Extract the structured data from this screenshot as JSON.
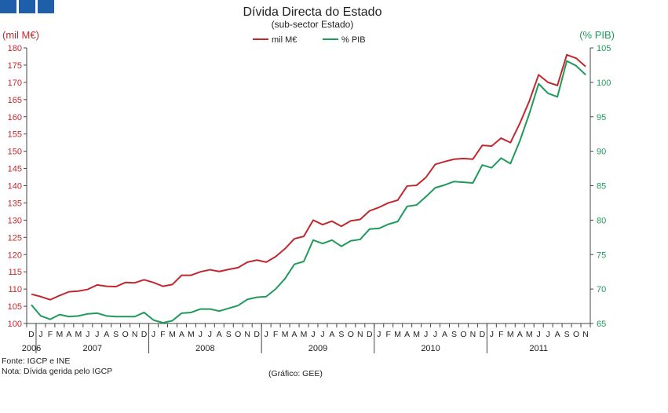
{
  "header": {
    "logo_color": "#1f5ea8"
  },
  "chart_data": {
    "type": "line",
    "title": "Dívida Directa do Estado",
    "subtitle": "(sub-sector  Estado)",
    "ylabel_left": "(mil M€)",
    "ylabel_right": "(% PIB)",
    "ylim_left": [
      100,
      180
    ],
    "ylim_right": [
      65,
      105
    ],
    "yticks_left": [
      100,
      105,
      110,
      115,
      120,
      125,
      130,
      135,
      140,
      145,
      150,
      155,
      160,
      165,
      170,
      175,
      180
    ],
    "yticks_right": [
      65,
      70,
      75,
      80,
      85,
      90,
      95,
      100,
      105
    ],
    "months": [
      "D",
      "J",
      "F",
      "M",
      "A",
      "M",
      "J",
      "J",
      "A",
      "S",
      "O",
      "N",
      "D",
      "J",
      "F",
      "M",
      "A",
      "M",
      "J",
      "J",
      "A",
      "S",
      "O",
      "N",
      "D",
      "J",
      "F",
      "M",
      "A",
      "M",
      "J",
      "J",
      "A",
      "S",
      "O",
      "N",
      "D",
      "J",
      "F",
      "M",
      "A",
      "M",
      "J",
      "J",
      "A",
      "S",
      "O",
      "N",
      "D",
      "J",
      "F",
      "M",
      "A",
      "M",
      "J",
      "J",
      "A",
      "S",
      "O",
      "N"
    ],
    "years": [
      {
        "label": "2006",
        "start": 0,
        "end": 0
      },
      {
        "label": "2007",
        "start": 1,
        "end": 12
      },
      {
        "label": "2008",
        "start": 13,
        "end": 24
      },
      {
        "label": "2009",
        "start": 25,
        "end": 36
      },
      {
        "label": "2010",
        "start": 37,
        "end": 48
      },
      {
        "label": "2011",
        "start": 49,
        "end": 59
      }
    ],
    "legend_position": "top-center",
    "grid": false,
    "series": [
      {
        "name": "mil M€",
        "axis": "left",
        "color": "#c0282d",
        "values": [
          108.5,
          107.8,
          106.9,
          108.1,
          109.2,
          109.4,
          109.9,
          111.2,
          110.8,
          110.7,
          111.9,
          111.8,
          112.7,
          111.9,
          110.8,
          111.3,
          114.0,
          114.0,
          115.0,
          115.6,
          115.1,
          115.7,
          116.2,
          117.8,
          118.4,
          117.8,
          119.4,
          121.7,
          124.6,
          125.3,
          130.0,
          128.7,
          129.7,
          128.2,
          129.8,
          130.2,
          132.7,
          133.7,
          135.0,
          135.8,
          139.9,
          140.1,
          142.4,
          146.2,
          147.0,
          147.7,
          147.9,
          147.7,
          151.7,
          151.5,
          153.8,
          152.5,
          158.1,
          164.5,
          172.2,
          170.0,
          169.1,
          178.0,
          177.0,
          174.6
        ]
      },
      {
        "name": "% PIB",
        "axis": "right",
        "color": "#1f9a5a",
        "values": [
          67.7,
          66.1,
          65.6,
          66.3,
          66.0,
          66.1,
          66.4,
          66.5,
          66.1,
          66.0,
          66.0,
          66.0,
          66.6,
          65.5,
          65.1,
          65.4,
          66.5,
          66.6,
          67.1,
          67.1,
          66.8,
          67.2,
          67.6,
          68.5,
          68.8,
          68.9,
          70.0,
          71.5,
          73.6,
          74.0,
          77.1,
          76.6,
          77.1,
          76.2,
          77.0,
          77.2,
          78.7,
          78.8,
          79.4,
          79.8,
          82.0,
          82.2,
          83.4,
          84.7,
          85.1,
          85.6,
          85.5,
          85.4,
          88.0,
          87.6,
          89.0,
          88.2,
          91.5,
          95.4,
          99.8,
          98.4,
          97.9,
          103.1,
          102.4,
          101.1
        ]
      }
    ]
  },
  "footer": {
    "source": "Fonte: IGCP  e INE",
    "note": "Nota: Dívida gerida pelo IGCP",
    "credit": "(Gráfico: GEE)"
  }
}
